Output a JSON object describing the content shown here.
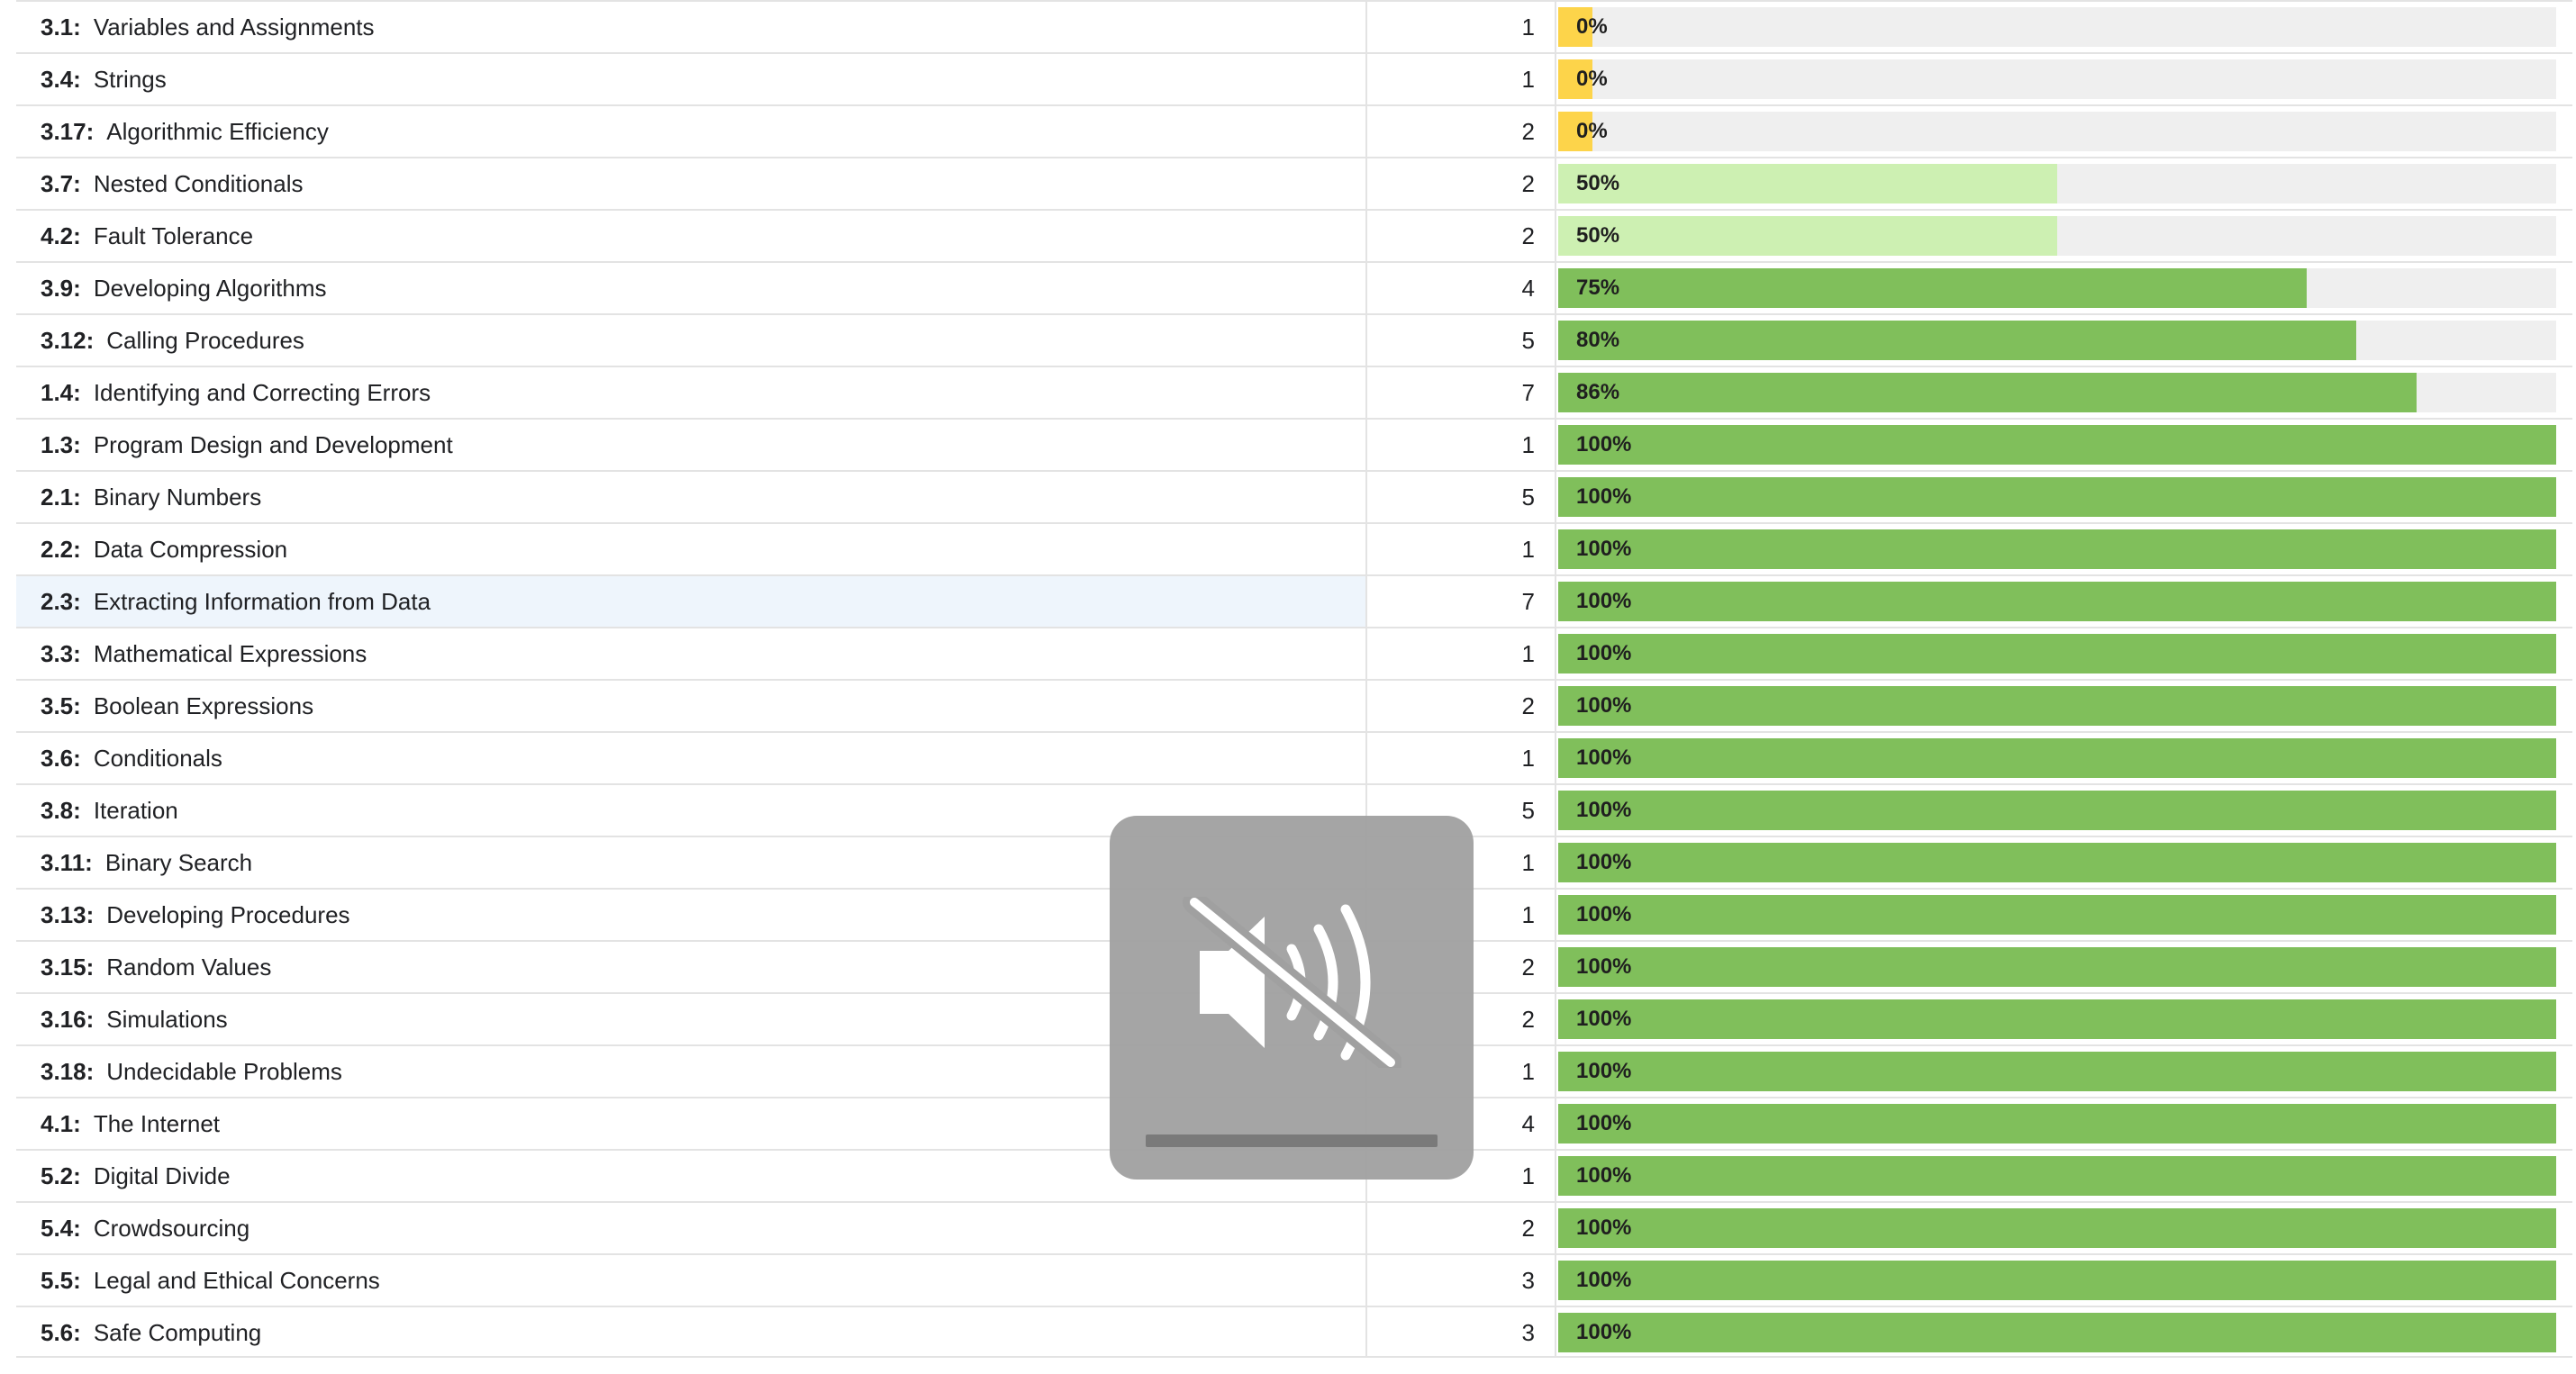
{
  "colors": {
    "bar_low": "#fdd44a",
    "bar_mid": "#cdf0b2",
    "bar_high": "#80bf5b",
    "bar_track": "#efefef"
  },
  "table": {
    "highlighted_row": 11,
    "rows": [
      {
        "code": "3.1:",
        "name": "Variables and Assignments",
        "count": "1",
        "percent": 0,
        "percent_label": "0%"
      },
      {
        "code": "3.4:",
        "name": "Strings",
        "count": "1",
        "percent": 0,
        "percent_label": "0%"
      },
      {
        "code": "3.17:",
        "name": "Algorithmic Efficiency",
        "count": "2",
        "percent": 0,
        "percent_label": "0%"
      },
      {
        "code": "3.7:",
        "name": "Nested Conditionals",
        "count": "2",
        "percent": 50,
        "percent_label": "50%"
      },
      {
        "code": "4.2:",
        "name": "Fault Tolerance",
        "count": "2",
        "percent": 50,
        "percent_label": "50%"
      },
      {
        "code": "3.9:",
        "name": "Developing Algorithms",
        "count": "4",
        "percent": 75,
        "percent_label": "75%"
      },
      {
        "code": "3.12:",
        "name": "Calling Procedures",
        "count": "5",
        "percent": 80,
        "percent_label": "80%"
      },
      {
        "code": "1.4:",
        "name": "Identifying and Correcting Errors",
        "count": "7",
        "percent": 86,
        "percent_label": "86%"
      },
      {
        "code": "1.3:",
        "name": "Program Design and Development",
        "count": "1",
        "percent": 100,
        "percent_label": "100%"
      },
      {
        "code": "2.1:",
        "name": "Binary Numbers",
        "count": "5",
        "percent": 100,
        "percent_label": "100%"
      },
      {
        "code": "2.2:",
        "name": "Data Compression",
        "count": "1",
        "percent": 100,
        "percent_label": "100%"
      },
      {
        "code": "2.3:",
        "name": "Extracting Information from Data",
        "count": "7",
        "percent": 100,
        "percent_label": "100%"
      },
      {
        "code": "3.3:",
        "name": "Mathematical Expressions",
        "count": "1",
        "percent": 100,
        "percent_label": "100%"
      },
      {
        "code": "3.5:",
        "name": "Boolean Expressions",
        "count": "2",
        "percent": 100,
        "percent_label": "100%"
      },
      {
        "code": "3.6:",
        "name": "Conditionals",
        "count": "1",
        "percent": 100,
        "percent_label": "100%"
      },
      {
        "code": "3.8:",
        "name": "Iteration",
        "count": "5",
        "percent": 100,
        "percent_label": "100%"
      },
      {
        "code": "3.11:",
        "name": "Binary Search",
        "count": "1",
        "percent": 100,
        "percent_label": "100%"
      },
      {
        "code": "3.13:",
        "name": "Developing Procedures",
        "count": "1",
        "percent": 100,
        "percent_label": "100%"
      },
      {
        "code": "3.15:",
        "name": "Random Values",
        "count": "2",
        "percent": 100,
        "percent_label": "100%"
      },
      {
        "code": "3.16:",
        "name": "Simulations",
        "count": "2",
        "percent": 100,
        "percent_label": "100%"
      },
      {
        "code": "3.18:",
        "name": "Undecidable Problems",
        "count": "1",
        "percent": 100,
        "percent_label": "100%"
      },
      {
        "code": "4.1:",
        "name": "The Internet",
        "count": "4",
        "percent": 100,
        "percent_label": "100%"
      },
      {
        "code": "5.2:",
        "name": "Digital Divide",
        "count": "1",
        "percent": 100,
        "percent_label": "100%"
      },
      {
        "code": "5.4:",
        "name": "Crowdsourcing",
        "count": "2",
        "percent": 100,
        "percent_label": "100%"
      },
      {
        "code": "5.5:",
        "name": "Legal and Ethical Concerns",
        "count": "3",
        "percent": 100,
        "percent_label": "100%"
      },
      {
        "code": "5.6:",
        "name": "Safe Computing",
        "count": "3",
        "percent": 100,
        "percent_label": "100%"
      }
    ]
  },
  "volume_hud": {
    "icon": "speaker-muted-icon",
    "level": 0
  }
}
